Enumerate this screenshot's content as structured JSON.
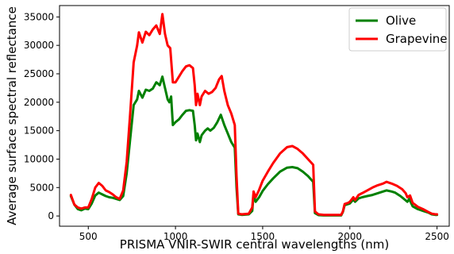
{
  "chart_data": {
    "type": "line",
    "xlabel": "PRISMA VNIR-SWIR central wavelengths (nm)",
    "ylabel": "Average surface spectral reflectance",
    "xlim": [
      335,
      2570
    ],
    "ylim": [
      -1800,
      37000
    ],
    "xticks": [
      500,
      1000,
      1500,
      2000,
      2500
    ],
    "yticks": [
      0,
      5000,
      10000,
      15000,
      20000,
      25000,
      30000,
      35000
    ],
    "grid": false,
    "legend_position": "top-right",
    "series": [
      {
        "name": "Olive",
        "color": "#008000",
        "points": [
          [
            400,
            3500
          ],
          [
            420,
            2000
          ],
          [
            440,
            1200
          ],
          [
            460,
            1000
          ],
          [
            480,
            1300
          ],
          [
            500,
            1200
          ],
          [
            520,
            2200
          ],
          [
            540,
            3600
          ],
          [
            560,
            4100
          ],
          [
            580,
            3800
          ],
          [
            600,
            3500
          ],
          [
            620,
            3300
          ],
          [
            640,
            3200
          ],
          [
            660,
            3000
          ],
          [
            680,
            2800
          ],
          [
            700,
            3500
          ],
          [
            720,
            7500
          ],
          [
            740,
            13500
          ],
          [
            760,
            19500
          ],
          [
            780,
            20500
          ],
          [
            790,
            22000
          ],
          [
            810,
            20800
          ],
          [
            830,
            22200
          ],
          [
            850,
            22000
          ],
          [
            870,
            22400
          ],
          [
            890,
            23500
          ],
          [
            910,
            23000
          ],
          [
            925,
            24500
          ],
          [
            940,
            22500
          ],
          [
            955,
            20500
          ],
          [
            965,
            20000
          ],
          [
            975,
            21000
          ],
          [
            985,
            16000
          ],
          [
            1000,
            16500
          ],
          [
            1020,
            17000
          ],
          [
            1040,
            17800
          ],
          [
            1060,
            18500
          ],
          [
            1080,
            18600
          ],
          [
            1100,
            18500
          ],
          [
            1110,
            16000
          ],
          [
            1118,
            13300
          ],
          [
            1126,
            14500
          ],
          [
            1140,
            13000
          ],
          [
            1150,
            14200
          ],
          [
            1170,
            15000
          ],
          [
            1185,
            15400
          ],
          [
            1200,
            15000
          ],
          [
            1220,
            15500
          ],
          [
            1240,
            16500
          ],
          [
            1260,
            17800
          ],
          [
            1280,
            16000
          ],
          [
            1300,
            14500
          ],
          [
            1320,
            13000
          ],
          [
            1340,
            12000
          ],
          [
            1350,
            5000
          ],
          [
            1360,
            300
          ],
          [
            1380,
            200
          ],
          [
            1420,
            300
          ],
          [
            1440,
            900
          ],
          [
            1448,
            3800
          ],
          [
            1460,
            2500
          ],
          [
            1480,
            3300
          ],
          [
            1500,
            4400
          ],
          [
            1530,
            5600
          ],
          [
            1560,
            6600
          ],
          [
            1600,
            7800
          ],
          [
            1640,
            8500
          ],
          [
            1670,
            8600
          ],
          [
            1700,
            8400
          ],
          [
            1730,
            7800
          ],
          [
            1760,
            7000
          ],
          [
            1790,
            6000
          ],
          [
            1800,
            500
          ],
          [
            1820,
            150
          ],
          [
            1850,
            100
          ],
          [
            1950,
            100
          ],
          [
            1960,
            700
          ],
          [
            1970,
            1900
          ],
          [
            1990,
            2100
          ],
          [
            2000,
            2200
          ],
          [
            2020,
            2900
          ],
          [
            2030,
            2500
          ],
          [
            2050,
            3100
          ],
          [
            2070,
            3300
          ],
          [
            2100,
            3500
          ],
          [
            2130,
            3700
          ],
          [
            2160,
            4000
          ],
          [
            2190,
            4300
          ],
          [
            2210,
            4500
          ],
          [
            2240,
            4300
          ],
          [
            2260,
            4100
          ],
          [
            2290,
            3500
          ],
          [
            2310,
            3000
          ],
          [
            2330,
            2500
          ],
          [
            2340,
            3000
          ],
          [
            2360,
            1700
          ],
          [
            2390,
            1200
          ],
          [
            2420,
            900
          ],
          [
            2450,
            600
          ],
          [
            2470,
            300
          ],
          [
            2490,
            200
          ],
          [
            2500,
            200
          ]
        ]
      },
      {
        "name": "Grapevine",
        "color": "#ff0000",
        "points": [
          [
            400,
            3700
          ],
          [
            420,
            2000
          ],
          [
            440,
            1500
          ],
          [
            460,
            1300
          ],
          [
            480,
            1500
          ],
          [
            500,
            1500
          ],
          [
            520,
            3000
          ],
          [
            540,
            5000
          ],
          [
            560,
            5800
          ],
          [
            580,
            5300
          ],
          [
            600,
            4500
          ],
          [
            620,
            4200
          ],
          [
            640,
            3800
          ],
          [
            660,
            3300
          ],
          [
            680,
            3000
          ],
          [
            700,
            4500
          ],
          [
            720,
            9500
          ],
          [
            740,
            18000
          ],
          [
            760,
            27000
          ],
          [
            780,
            30000
          ],
          [
            790,
            32300
          ],
          [
            810,
            30500
          ],
          [
            830,
            32400
          ],
          [
            850,
            31800
          ],
          [
            870,
            32800
          ],
          [
            890,
            33500
          ],
          [
            910,
            32000
          ],
          [
            925,
            35500
          ],
          [
            940,
            32000
          ],
          [
            955,
            30000
          ],
          [
            970,
            29500
          ],
          [
            985,
            23500
          ],
          [
            1000,
            23500
          ],
          [
            1020,
            24500
          ],
          [
            1040,
            25500
          ],
          [
            1060,
            26300
          ],
          [
            1080,
            26500
          ],
          [
            1100,
            26000
          ],
          [
            1110,
            23000
          ],
          [
            1118,
            19500
          ],
          [
            1126,
            21500
          ],
          [
            1140,
            19500
          ],
          [
            1150,
            21000
          ],
          [
            1170,
            22000
          ],
          [
            1190,
            21500
          ],
          [
            1210,
            21800
          ],
          [
            1230,
            22500
          ],
          [
            1250,
            24000
          ],
          [
            1265,
            24600
          ],
          [
            1280,
            22000
          ],
          [
            1300,
            19500
          ],
          [
            1320,
            18000
          ],
          [
            1340,
            16000
          ],
          [
            1350,
            7000
          ],
          [
            1360,
            400
          ],
          [
            1380,
            300
          ],
          [
            1420,
            400
          ],
          [
            1440,
            1500
          ],
          [
            1448,
            4300
          ],
          [
            1460,
            3300
          ],
          [
            1480,
            4600
          ],
          [
            1500,
            6200
          ],
          [
            1530,
            7800
          ],
          [
            1560,
            9300
          ],
          [
            1600,
            11000
          ],
          [
            1640,
            12100
          ],
          [
            1670,
            12300
          ],
          [
            1700,
            11800
          ],
          [
            1730,
            11000
          ],
          [
            1760,
            10000
          ],
          [
            1790,
            9000
          ],
          [
            1800,
            800
          ],
          [
            1820,
            300
          ],
          [
            1850,
            200
          ],
          [
            1950,
            200
          ],
          [
            1960,
            800
          ],
          [
            1970,
            2100
          ],
          [
            1990,
            2300
          ],
          [
            2000,
            2500
          ],
          [
            2020,
            3300
          ],
          [
            2030,
            2800
          ],
          [
            2050,
            3700
          ],
          [
            2070,
            4000
          ],
          [
            2100,
            4500
          ],
          [
            2130,
            5000
          ],
          [
            2160,
            5400
          ],
          [
            2190,
            5700
          ],
          [
            2210,
            6000
          ],
          [
            2240,
            5700
          ],
          [
            2270,
            5300
          ],
          [
            2300,
            4700
          ],
          [
            2320,
            4000
          ],
          [
            2330,
            3300
          ],
          [
            2345,
            3600
          ],
          [
            2360,
            2300
          ],
          [
            2390,
            1600
          ],
          [
            2420,
            1200
          ],
          [
            2450,
            700
          ],
          [
            2470,
            400
          ],
          [
            2490,
            300
          ],
          [
            2500,
            300
          ]
        ]
      }
    ]
  }
}
